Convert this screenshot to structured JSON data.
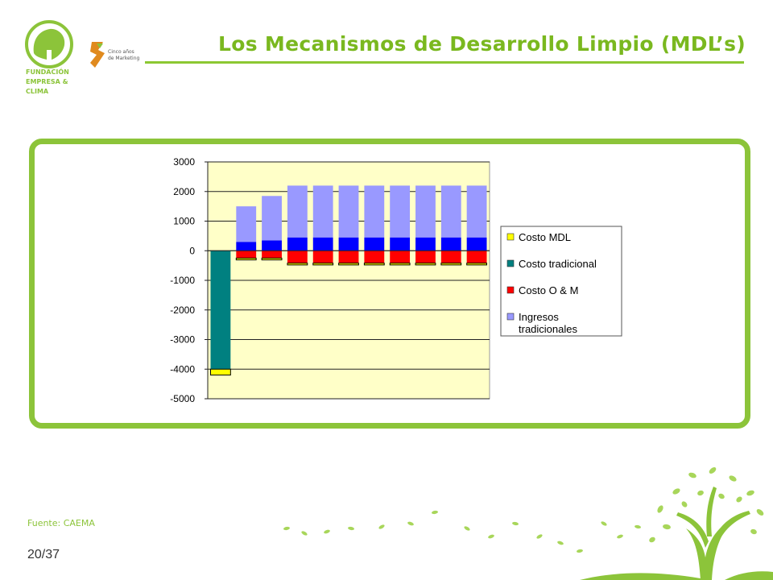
{
  "header": {
    "title": "Los Mecanismos de Desarrollo Limpio (MDL’s)",
    "logo_lines": [
      "FUNDACIÓN",
      "EMPRESA &",
      "CLIMA"
    ],
    "partner_logo_text": [
      "Cinco años",
      "de Marketing"
    ]
  },
  "footer": {
    "source": "Fuente: CAEMA",
    "page": "20/37"
  },
  "colors": {
    "accent": "#8cc43a",
    "title": "#7ab81f",
    "plot_bg": "#ffffc8",
    "costo_mdl": "#ffff00",
    "costo_tradicional": "#008080",
    "costo_om": "#ff0000",
    "ingresos_tradicionales": "#9999ff",
    "blue_segment": "#0000ff"
  },
  "chart_data": {
    "type": "bar",
    "stacked": true,
    "categories": [
      "1",
      "2",
      "3",
      "4",
      "5",
      "6",
      "7",
      "8",
      "9",
      "10",
      "11"
    ],
    "ylim": [
      -5000,
      3000
    ],
    "yticks": [
      3000,
      2000,
      1000,
      0,
      -1000,
      -2000,
      -3000,
      -4000,
      -5000
    ],
    "grid": true,
    "legend_position": "right",
    "series": [
      {
        "name": "Costo MDL",
        "color": "#ffff00",
        "values": [
          -200,
          -60,
          -60,
          -60,
          -60,
          -60,
          -60,
          -60,
          -60,
          -60,
          -60
        ]
      },
      {
        "name": "Costo tradicional",
        "color": "#008080",
        "values": [
          -4000,
          0,
          0,
          0,
          0,
          0,
          0,
          0,
          0,
          0,
          0
        ]
      },
      {
        "name": "Costo O & M",
        "color": "#ff0000",
        "values": [
          0,
          -250,
          -250,
          -420,
          -420,
          -420,
          -420,
          -420,
          -420,
          -420,
          -420
        ]
      },
      {
        "name": "",
        "color": "#0000ff",
        "values": [
          0,
          300,
          350,
          450,
          450,
          450,
          450,
          450,
          450,
          450,
          450
        ]
      },
      {
        "name": "Ingresos tradicionales",
        "color": "#9999ff",
        "values": [
          0,
          1200,
          1500,
          1750,
          1750,
          1750,
          1750,
          1750,
          1750,
          1750,
          1750
        ]
      }
    ],
    "legend": [
      "Costo MDL",
      "Costo tradicional",
      "Costo O & M",
      "Ingresos tradicionales"
    ]
  }
}
